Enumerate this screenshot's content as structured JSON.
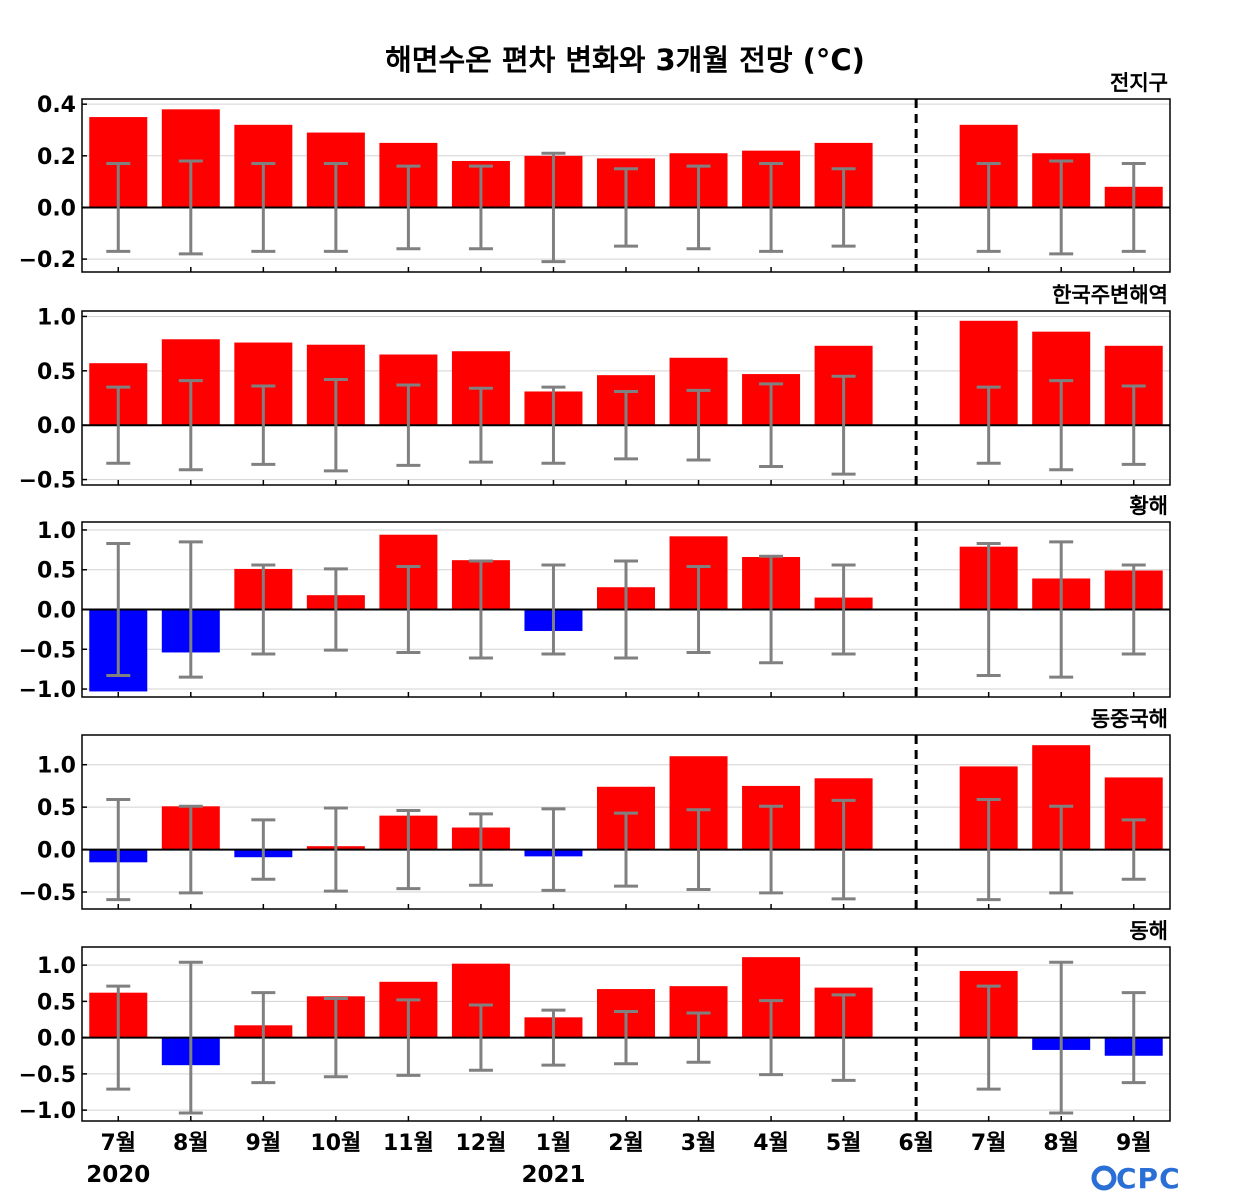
{
  "chart_data": {
    "type": "bar",
    "title": "해면수온 편차 변화와 3개월 전망 (°C)",
    "categories": [
      "7월",
      "8월",
      "9월",
      "10월",
      "11월",
      "12월",
      "1월",
      "2월",
      "3월",
      "4월",
      "5월",
      "6월",
      "7월",
      "8월",
      "9월"
    ],
    "year_labels": [
      {
        "index": 0,
        "label": "2020"
      },
      {
        "index": 6,
        "label": "2021"
      }
    ],
    "forecast_divider_after": "6월",
    "colors": {
      "positive": "#ff0000",
      "negative": "#0000ff",
      "error": "#808080",
      "grid": "#d3d3d3"
    },
    "grid": true,
    "panels": [
      {
        "title": "전지구",
        "ylim": [
          -0.25,
          0.42
        ],
        "yticks": [
          -0.2,
          0.0,
          0.2,
          0.4
        ],
        "ytick_labels": [
          "−0.2",
          "0.0",
          "0.2",
          "0.4"
        ],
        "values": [
          0.35,
          0.38,
          0.32,
          0.29,
          0.25,
          0.18,
          0.2,
          0.19,
          0.21,
          0.22,
          0.25,
          0.0,
          0.32,
          0.21,
          0.08
        ],
        "error": [
          0.17,
          0.18,
          0.17,
          0.17,
          0.16,
          0.16,
          0.21,
          0.15,
          0.16,
          0.17,
          0.15,
          null,
          0.17,
          0.18,
          0.17
        ]
      },
      {
        "title": "한국주변해역",
        "ylim": [
          -0.55,
          1.05
        ],
        "yticks": [
          -0.5,
          0.0,
          0.5,
          1.0
        ],
        "ytick_labels": [
          "−0.5",
          "0.0",
          "0.5",
          "1.0"
        ],
        "values": [
          0.57,
          0.79,
          0.76,
          0.74,
          0.65,
          0.68,
          0.31,
          0.46,
          0.62,
          0.47,
          0.73,
          0.0,
          0.96,
          0.86,
          0.73
        ],
        "error": [
          0.35,
          0.41,
          0.36,
          0.42,
          0.37,
          0.34,
          0.35,
          0.31,
          0.32,
          0.38,
          0.45,
          null,
          0.35,
          0.41,
          0.36
        ]
      },
      {
        "title": "황해",
        "ylim": [
          -1.1,
          1.1
        ],
        "yticks": [
          -1.0,
          -0.5,
          0.0,
          0.5,
          1.0
        ],
        "ytick_labels": [
          "−1.0",
          "−0.5",
          "0.0",
          "0.5",
          "1.0"
        ],
        "values": [
          -1.03,
          -0.54,
          0.51,
          0.18,
          0.94,
          0.62,
          -0.27,
          0.28,
          0.92,
          0.66,
          0.15,
          0.0,
          0.79,
          0.39,
          0.49
        ],
        "error": [
          0.83,
          0.85,
          0.56,
          0.51,
          0.54,
          0.61,
          0.56,
          0.61,
          0.54,
          0.67,
          0.56,
          null,
          0.83,
          0.85,
          0.56
        ]
      },
      {
        "title": "동중국해",
        "ylim": [
          -0.7,
          1.35
        ],
        "yticks": [
          -0.5,
          0.0,
          0.5,
          1.0
        ],
        "ytick_labels": [
          "−0.5",
          "0.0",
          "0.5",
          "1.0"
        ],
        "values": [
          -0.15,
          0.51,
          -0.09,
          0.04,
          0.4,
          0.26,
          -0.08,
          0.74,
          1.1,
          0.75,
          0.84,
          0.0,
          0.98,
          1.23,
          0.85
        ],
        "error": [
          0.59,
          0.51,
          0.35,
          0.49,
          0.46,
          0.42,
          0.48,
          0.43,
          0.47,
          0.51,
          0.58,
          null,
          0.59,
          0.51,
          0.35
        ]
      },
      {
        "title": "동해",
        "ylim": [
          -1.15,
          1.25
        ],
        "yticks": [
          -1.0,
          -0.5,
          0.0,
          0.5,
          1.0
        ],
        "ytick_labels": [
          "−1.0",
          "−0.5",
          "0.0",
          "0.5",
          "1.0"
        ],
        "values": [
          0.62,
          -0.38,
          0.17,
          0.57,
          0.77,
          1.02,
          0.28,
          0.67,
          0.71,
          1.11,
          0.69,
          0.0,
          0.92,
          -0.17,
          -0.25
        ],
        "error": [
          0.71,
          1.04,
          0.62,
          0.54,
          0.52,
          0.45,
          0.38,
          0.36,
          0.34,
          0.51,
          0.59,
          null,
          0.71,
          1.04,
          0.62
        ]
      }
    ]
  },
  "logo": {
    "text": "OCPC"
  }
}
